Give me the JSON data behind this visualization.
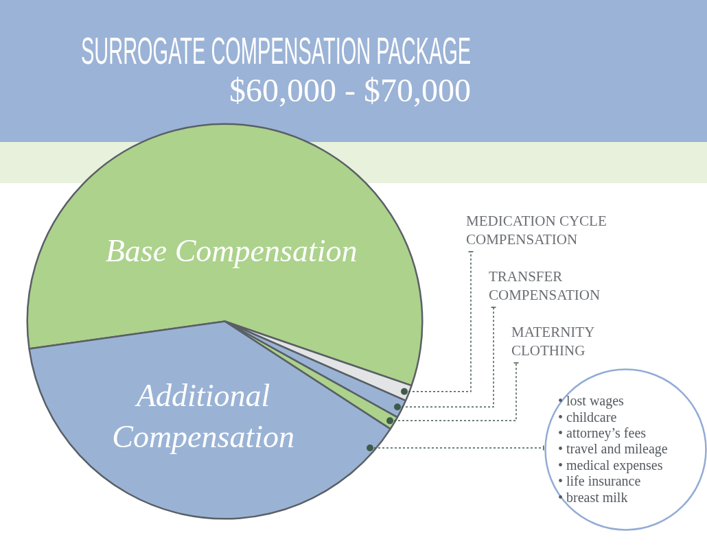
{
  "chart_data": {
    "type": "pie",
    "title": "SURROGATE COMPENSATION PACKAGE",
    "subtitle": "$60,000 - $70,000",
    "categories": [
      "Base Compensation",
      "MEDICATION CYCLE COMPENSATION",
      "TRANSFER COMPENSATION",
      "MATERNITY CLOTHING",
      "Additional Compensation"
    ],
    "values": [
      57.5,
      1.3,
      1.5,
      1.1,
      38.6
    ],
    "colors": [
      "#acd28c",
      "#e3e4e6",
      "#9ab3d5",
      "#acd28c",
      "#9ab3d5"
    ],
    "annotations": [
      "• lost wages",
      "• childcare",
      "• attorney’s fees",
      "• travel and mileage",
      "• medical expenses",
      "• life insurance",
      "• breast milk"
    ]
  }
}
